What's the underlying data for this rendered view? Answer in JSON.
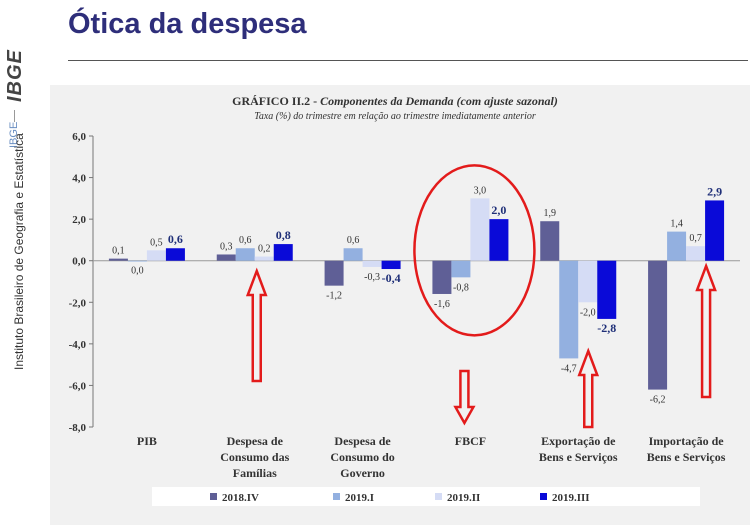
{
  "page": {
    "title": "Ótica da despesa",
    "brand_logo": "IBGE",
    "brand_tag": "IBGE",
    "institution": "Instituto Brasileiro de Geografia e Estatística"
  },
  "chart_data": {
    "type": "bar",
    "title": "GRÁFICO II.2 - Componentes da Demanda (com ajuste sazonal)",
    "title_prefix": "GRÁFICO II.2 -",
    "title_rest": "Componentes da Demanda (com ajuste sazonal)",
    "subtitle": "Taxa (%) do trimestre em relação ao trimestre imediatamente anterior",
    "categories": [
      [
        "PIB"
      ],
      [
        "Despesa de",
        "Consumo das",
        "Famílias"
      ],
      [
        "Despesa de",
        "Consumo do",
        "Governo"
      ],
      [
        "FBCF"
      ],
      [
        "Exportação de",
        "Bens e Serviços"
      ],
      [
        "Importação de",
        "Bens e Serviços"
      ]
    ],
    "series": [
      {
        "name": "2018.IV",
        "color": "#5f5f96",
        "values": [
          0.1,
          0.3,
          -1.2,
          -1.6,
          1.9,
          -6.2
        ],
        "labels": [
          "0,1",
          "0,3",
          "-1,2",
          "-1,6",
          "1,9",
          "-6,2"
        ]
      },
      {
        "name": "2019.I",
        "color": "#93b0e0",
        "values": [
          0.0,
          0.6,
          0.6,
          -0.8,
          -4.7,
          1.4
        ],
        "labels": [
          "0,0",
          "0,6",
          "0,6",
          "-0,8",
          "-4,7",
          "1,4"
        ]
      },
      {
        "name": "2019.II",
        "color": "#d5dcf5",
        "values": [
          0.5,
          0.2,
          -0.3,
          3.0,
          -2.0,
          0.7
        ],
        "labels": [
          "0,5",
          "0,2",
          "-0,3",
          "3,0",
          "-2,0",
          "0,7"
        ]
      },
      {
        "name": "2019.III",
        "color": "#0a0ad8",
        "values": [
          0.6,
          0.8,
          -0.4,
          2.0,
          -2.8,
          2.9
        ],
        "labels": [
          "0,6",
          "0,8",
          "-0,4",
          "2,0",
          "-2,8",
          "2,9"
        ]
      }
    ],
    "ylim": [
      -8.0,
      6.0
    ],
    "yticks": [
      6.0,
      4.0,
      2.0,
      0.0,
      -2.0,
      -4.0,
      -6.0,
      -8.0
    ],
    "ytick_labels": [
      "6,0",
      "4,0",
      "2,0",
      "0,0",
      "-2,0",
      "-4,0",
      "-6,0",
      "-8,0"
    ],
    "grid": false,
    "legend_position": "bottom",
    "annotations": {
      "highlight_color": "#e31b1b",
      "circled_category": "FBCF",
      "arrows": [
        {
          "category": "Despesa de Consumo das Famílias",
          "direction": "up"
        },
        {
          "category": "FBCF",
          "direction": "down"
        },
        {
          "category": "Exportação de Bens e Serviços",
          "direction": "up"
        },
        {
          "category": "Importação de Bens e Serviços",
          "direction": "up"
        }
      ]
    }
  }
}
